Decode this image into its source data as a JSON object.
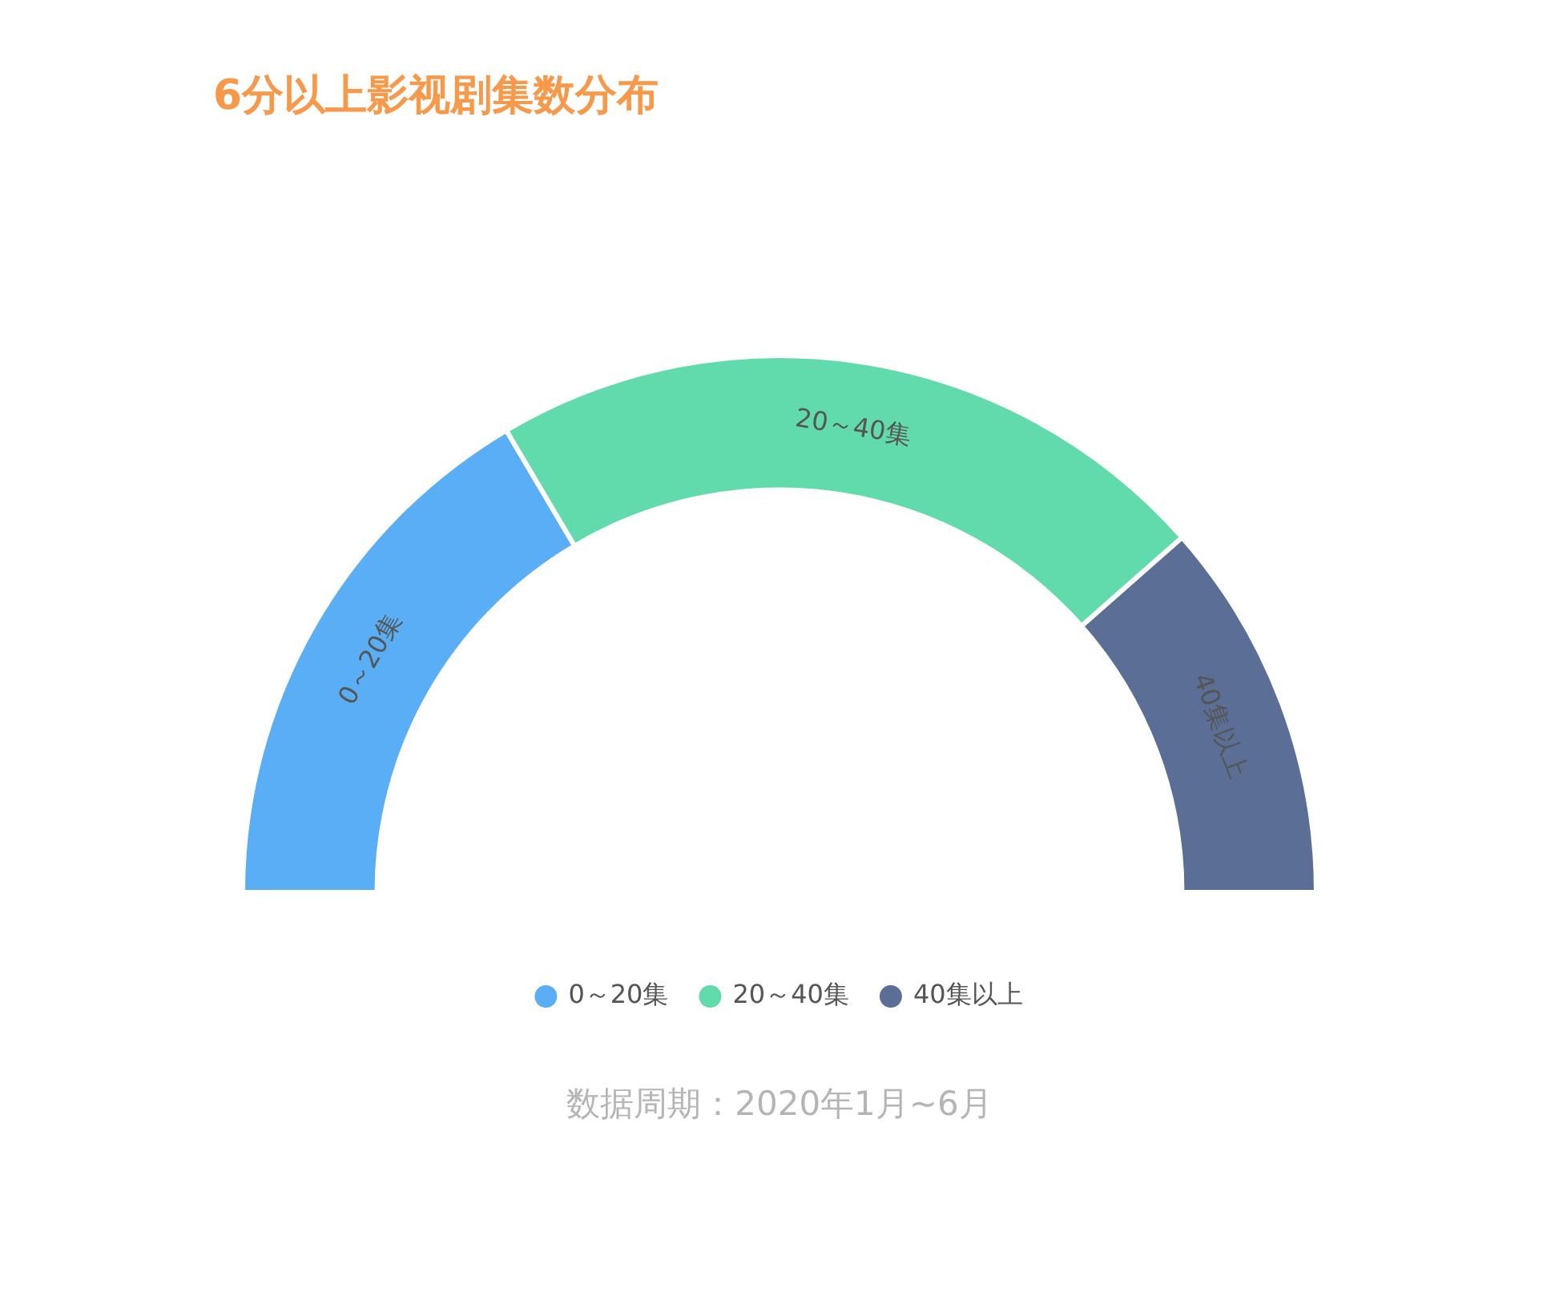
{
  "chart_data": {
    "type": "donut",
    "title": "6分以上影视剧集数分布",
    "categories": [
      "0～20集",
      "20～40集",
      "40集以上"
    ],
    "values": [
      33,
      44,
      23
    ],
    "colors": [
      "#5aaef5",
      "#62dbac",
      "#5a6e96"
    ],
    "legend": "bottom",
    "annotations": [
      "数据周期：2020年1月~6月"
    ]
  }
}
